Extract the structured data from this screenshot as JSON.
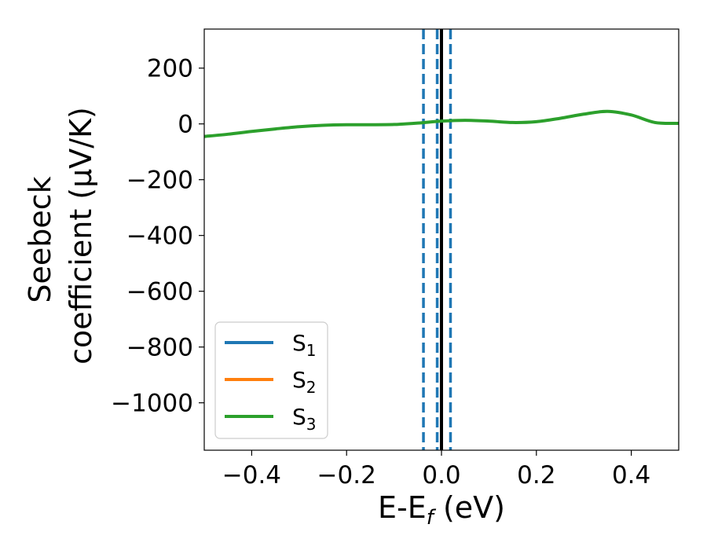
{
  "chart_data": {
    "type": "line",
    "xlabel": {
      "main": "E-E",
      "sub": "f",
      "unit": " (eV)"
    },
    "ylabel": {
      "line1": "Seebeck",
      "line2": "coefficient  (μV/K)"
    },
    "xlim": [
      -0.5,
      0.5
    ],
    "ylim": [
      -1170,
      340
    ],
    "x_ticks": [
      -0.4,
      -0.2,
      0.0,
      0.2,
      0.4
    ],
    "x_tick_labels": [
      "−0.4",
      "−0.2",
      "0.0",
      "0.2",
      "0.4"
    ],
    "y_ticks": [
      200,
      0,
      -200,
      -400,
      -600,
      -800,
      -1000
    ],
    "y_tick_labels": [
      "200",
      "0",
      "−200",
      "−400",
      "−600",
      "−800",
      "−1000"
    ],
    "grid": false,
    "legend_position": "lower-left",
    "series": [
      {
        "name": "S",
        "sub": "1",
        "color": "#1f77b4",
        "x": [],
        "y": []
      },
      {
        "name": "S",
        "sub": "2",
        "color": "#ff7f0e",
        "x": [],
        "y": []
      },
      {
        "name": "S",
        "sub": "3",
        "color": "#2ca02c",
        "x": [
          -0.5,
          -0.45,
          -0.4,
          -0.35,
          -0.3,
          -0.25,
          -0.2,
          -0.15,
          -0.1,
          -0.05,
          0.0,
          0.05,
          0.1,
          0.15,
          0.2,
          0.25,
          0.3,
          0.35,
          0.4,
          0.45,
          0.5
        ],
        "y": [
          -45,
          -37,
          -27,
          -18,
          -10,
          -5,
          -3,
          -3,
          -2,
          3,
          10,
          13,
          10,
          5,
          8,
          20,
          35,
          45,
          32,
          5,
          2
        ]
      }
    ],
    "vertical_lines": [
      {
        "x": -0.038,
        "style": "dashed",
        "color": "#1f77b4"
      },
      {
        "x": -0.009,
        "style": "dashed",
        "color": "#1f77b4"
      },
      {
        "x": 0.019,
        "style": "dashed",
        "color": "#1f77b4"
      },
      {
        "x": 0.0,
        "style": "solid",
        "color": "#000000"
      }
    ]
  }
}
